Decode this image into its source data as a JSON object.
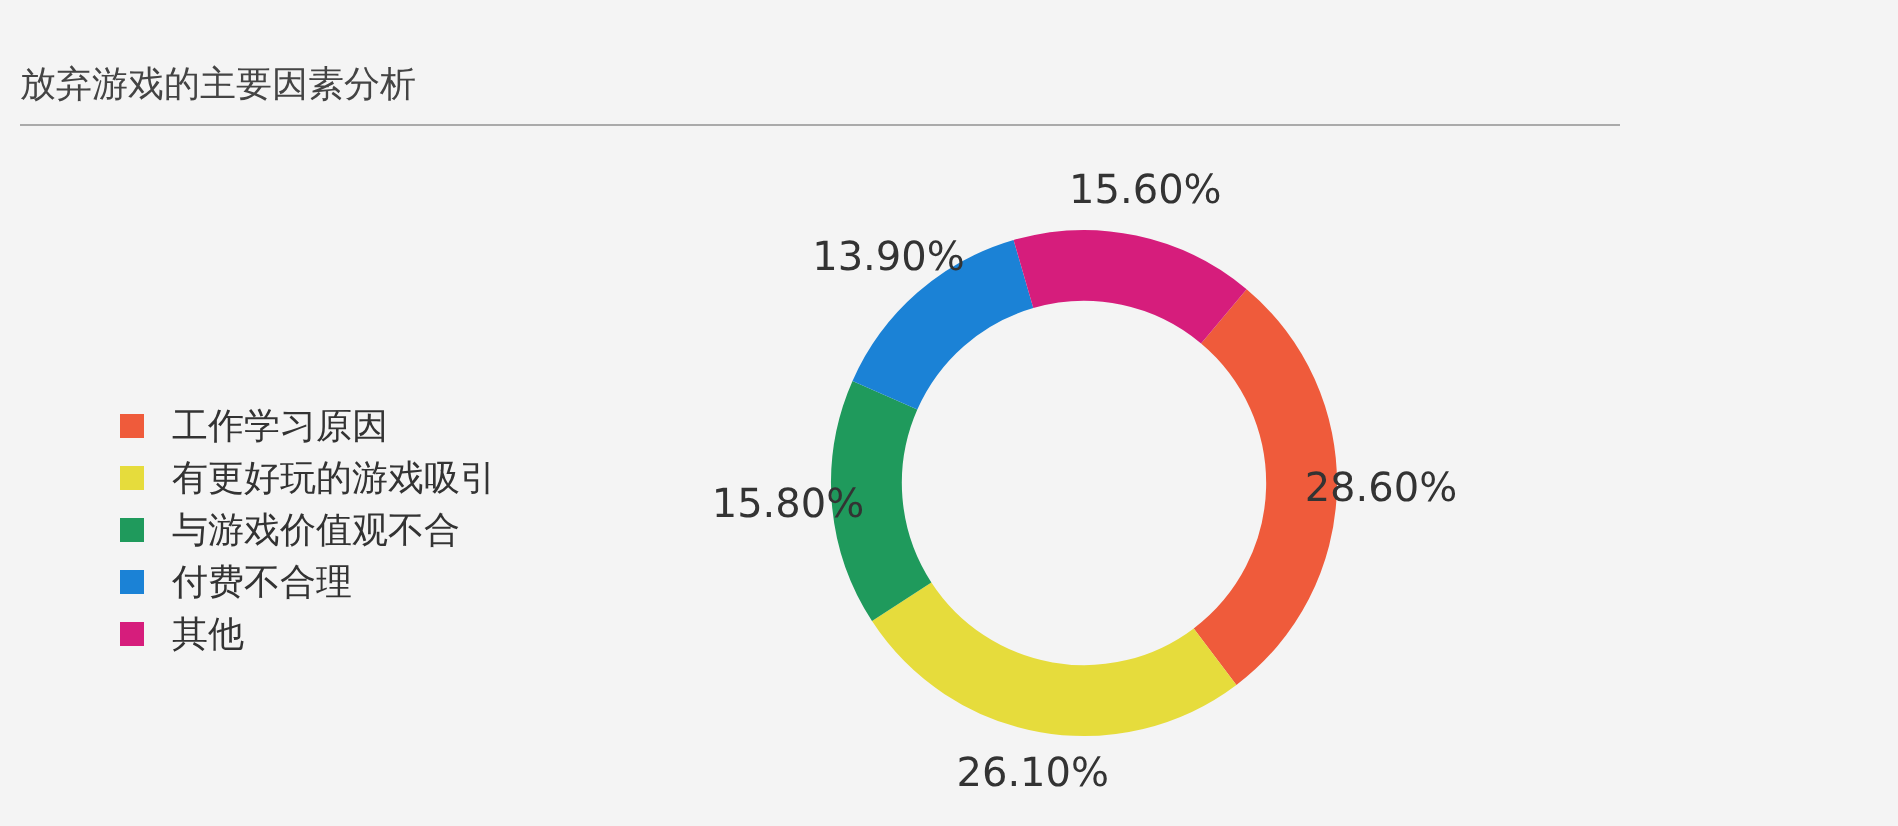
{
  "chart_data": {
    "type": "donut",
    "title": "放弃游戏的主要因素分析",
    "categories": [
      "工作学习原因",
      "有更好玩的游戏吸引",
      "与游戏价值观不合",
      "付费不合理",
      "其他"
    ],
    "values": [
      28.6,
      26.1,
      15.8,
      13.9,
      15.6
    ],
    "colors": [
      "#ef5b3b",
      "#e6dc3c",
      "#1f9a5c",
      "#1b82d6",
      "#d61d7c"
    ],
    "value_labels": [
      "28.60%",
      "26.10%",
      "15.80%",
      "13.90%",
      "15.60%"
    ],
    "legend": "left"
  }
}
